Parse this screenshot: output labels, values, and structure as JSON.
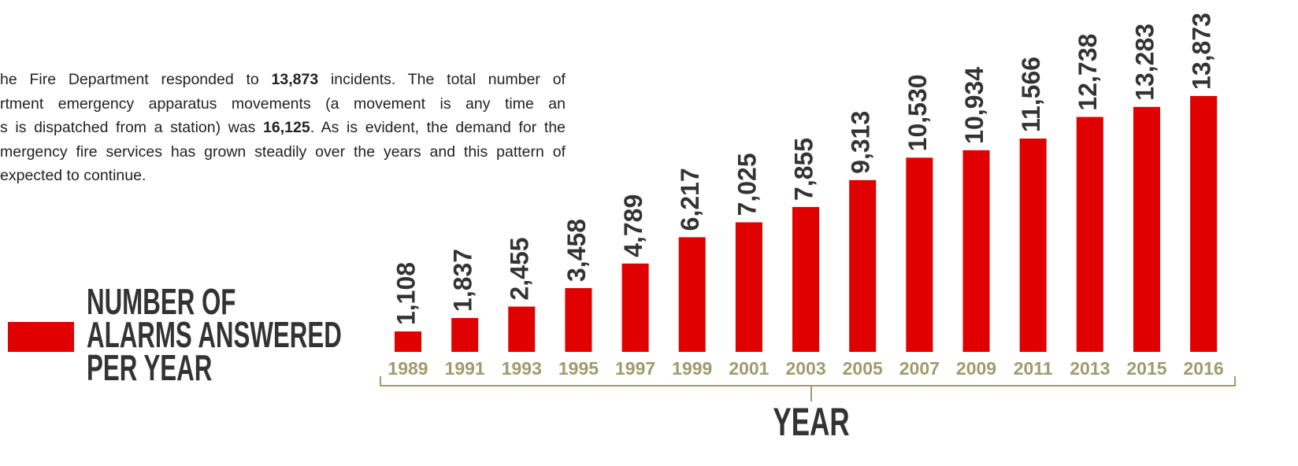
{
  "paragraph": [
    [
      "he Fire Department responded to ",
      "13,873",
      " incidents. The total number of"
    ],
    [
      "rtment emergency apparatus movements (a movement is any time an"
    ],
    [
      "s is dispatched from a station) was ",
      "16,125",
      ". As is evident, the demand for the"
    ],
    [
      "mergency fire services has grown steadily over the years and this pattern of"
    ],
    [
      "expected to continue."
    ]
  ],
  "chart_data": {
    "type": "bar",
    "categories": [
      "1989",
      "1991",
      "1993",
      "1995",
      "1997",
      "1999",
      "2001",
      "2003",
      "2005",
      "2007",
      "2009",
      "2011",
      "2013",
      "2015",
      "2016"
    ],
    "series": [
      {
        "name": "NUMBER OF ALARMS ANSWERED PER YEAR",
        "color": "#e00000",
        "values": [
          1108,
          1837,
          2455,
          3458,
          4789,
          6217,
          7025,
          7855,
          9313,
          10530,
          10934,
          11566,
          12738,
          13283,
          13873
        ],
        "value_labels": [
          "1,108",
          "1,837",
          "2,455",
          "3,458",
          "4,789",
          "6,217",
          "7,025",
          "7,855",
          "9,313",
          "10,530",
          "10,934",
          "11,566",
          "12,738",
          "13,283",
          "13,873"
        ]
      }
    ],
    "xlabel": "YEAR",
    "ylim": [
      0,
      14000
    ]
  }
}
